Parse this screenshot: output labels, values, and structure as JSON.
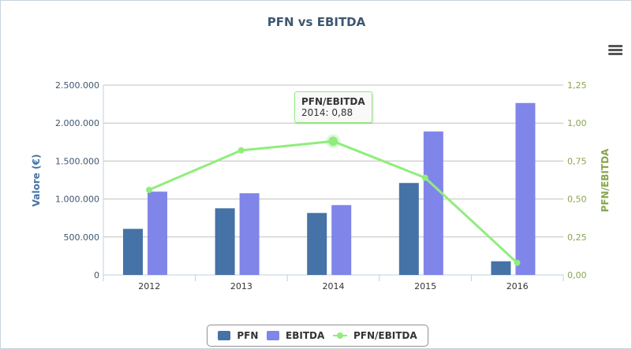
{
  "chart_data": {
    "type": "bar",
    "title": "PFN vs EBITDA",
    "categories": [
      "2012",
      "2013",
      "2014",
      "2015",
      "2016"
    ],
    "series": [
      {
        "name": "PFN",
        "type": "bar",
        "axis": "left",
        "color": "#4572a7",
        "values": [
          607000,
          878000,
          816000,
          1211000,
          180000
        ]
      },
      {
        "name": "EBITDA",
        "type": "bar",
        "axis": "left",
        "color": "#8085e9",
        "values": [
          1097000,
          1076000,
          920000,
          1889000,
          2264000
        ]
      },
      {
        "name": "PFN/EBITDA",
        "type": "line",
        "axis": "right",
        "color": "#90ed7d",
        "values": [
          0.56,
          0.82,
          0.88,
          0.64,
          0.08
        ]
      }
    ],
    "ylabel": "Valore (€)",
    "ylabel_right": "PFN/EBITDA",
    "ylim": [
      0,
      2500000
    ],
    "ylim_right": [
      0,
      1.25
    ],
    "yticks": [
      "0",
      "500.000",
      "1.000.000",
      "1.500.000",
      "2.000.000",
      "2.500.000"
    ],
    "yticks_right": [
      "0,00",
      "0,25",
      "0,50",
      "0,75",
      "1,00",
      "1,25"
    ],
    "grid": true,
    "legend": "bottom-center",
    "tooltip": {
      "title": "PFN/EBITDA",
      "text": "2014: 0,88"
    }
  },
  "menu_icon": "hamburger-icon"
}
